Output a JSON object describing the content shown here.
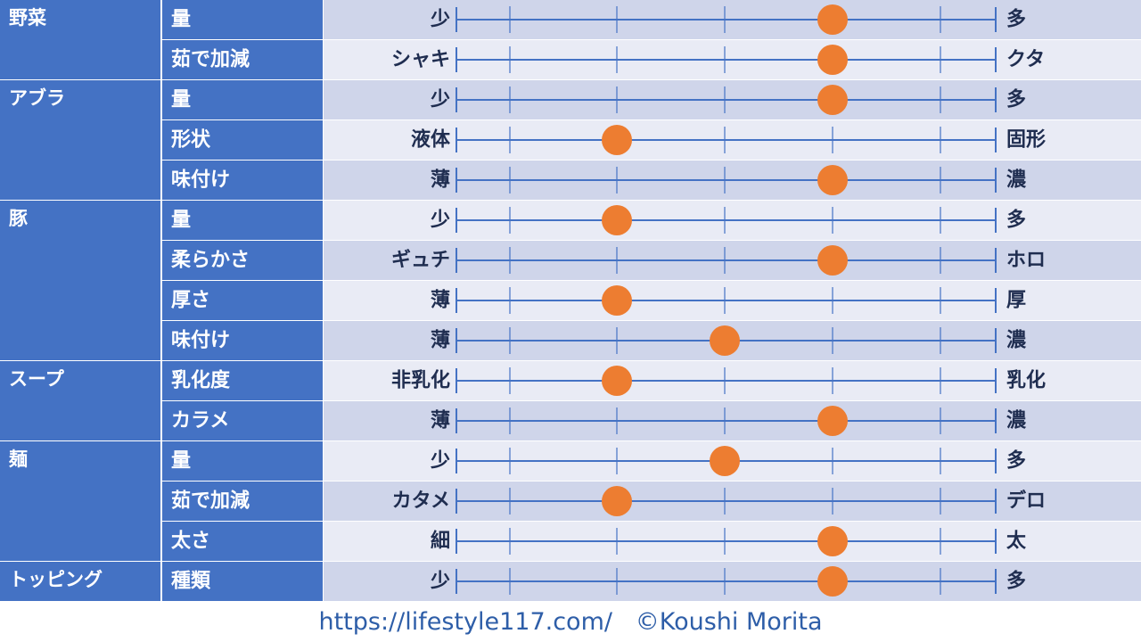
{
  "chart_data": {
    "type": "scatter",
    "scale_steps": 5,
    "groups": [
      {
        "name": "野菜",
        "rows": [
          {
            "label": "量",
            "left": "少",
            "right": "多",
            "value": 4
          },
          {
            "label": "茹で加減",
            "left": "シャキ",
            "right": "クタ",
            "value": 4
          }
        ]
      },
      {
        "name": "アブラ",
        "rows": [
          {
            "label": "量",
            "left": "少",
            "right": "多",
            "value": 4
          },
          {
            "label": "形状",
            "left": "液体",
            "right": "固形",
            "value": 2
          },
          {
            "label": "味付け",
            "left": "薄",
            "right": "濃",
            "value": 4
          }
        ]
      },
      {
        "name": "豚",
        "rows": [
          {
            "label": "量",
            "left": "少",
            "right": "多",
            "value": 2
          },
          {
            "label": "柔らかさ",
            "left": "ギュチ",
            "right": "ホロ",
            "value": 4
          },
          {
            "label": "厚さ",
            "left": "薄",
            "right": "厚",
            "value": 2
          },
          {
            "label": "味付け",
            "left": "薄",
            "right": "濃",
            "value": 3
          }
        ]
      },
      {
        "name": "スープ",
        "rows": [
          {
            "label": "乳化度",
            "left": "非乳化",
            "right": "乳化",
            "value": 2
          },
          {
            "label": "カラメ",
            "left": "薄",
            "right": "濃",
            "value": 4
          }
        ]
      },
      {
        "name": "麺",
        "rows": [
          {
            "label": "量",
            "left": "少",
            "right": "多",
            "value": 3
          },
          {
            "label": "茹で加減",
            "left": "カタメ",
            "right": "デロ",
            "value": 2
          },
          {
            "label": "太さ",
            "left": "細",
            "right": "太",
            "value": 4
          }
        ]
      },
      {
        "name": "トッピング",
        "rows": [
          {
            "label": "種類",
            "left": "少",
            "right": "多",
            "value": 4
          }
        ]
      }
    ]
  },
  "footer": "https://lifestyle117.com/   ©Koushi Morita",
  "colors": {
    "header_bg": "#4472c4",
    "row_dark": "#cfd5ea",
    "row_light": "#e9ebf5",
    "line": "#4472c4",
    "dot": "#ed7d31",
    "text_dark": "#1f2d50",
    "footer_text": "#2e5ea8"
  }
}
